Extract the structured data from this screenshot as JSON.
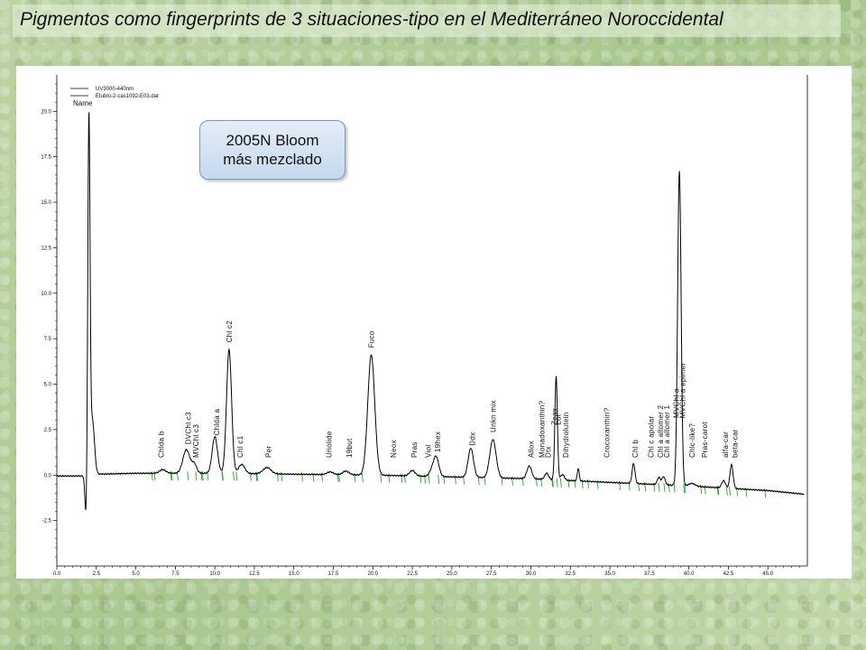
{
  "slide": {
    "title": "Pigmentos como fingerprints de 3 situaciones-tipo en el Mediterráneo Noroccidental"
  },
  "callout": {
    "line1": "2005N Bloom",
    "line2": "más mezclado"
  },
  "colors": {
    "trace": "#000000",
    "baseline_marks": "#22aa22",
    "background": "#b7cf9c"
  },
  "chart_data": {
    "type": "line",
    "title": "",
    "xlabel": "",
    "ylabel": "",
    "xlim": [
      0,
      47.5
    ],
    "ylim": [
      -5,
      22
    ],
    "x_ticks": [
      "0.0",
      "2.5",
      "5.0",
      "7.5",
      "10.0",
      "12.5",
      "15.0",
      "17.5",
      "20.0",
      "22.5",
      "25.0",
      "27.5",
      "30.0",
      "32.5",
      "35.0",
      "37.5",
      "40.0",
      "42.5",
      "45.0"
    ],
    "y_ticks": [
      "-2.5",
      "0.0",
      "2.5",
      "5.0",
      "7.5",
      "10.0",
      "12.5",
      "15.0",
      "17.5",
      "20.0"
    ],
    "legend": {
      "position": "top-left",
      "entries": [
        "UV3000-440nm",
        "Etublo-2-cas1092-E03.dat"
      ],
      "header": "Name"
    },
    "grid": false,
    "series": [
      {
        "name": "UV3000-440nm",
        "baseline": [
          [
            0,
            -0.05
          ],
          [
            1.5,
            -0.05
          ],
          [
            2.6,
            0.05
          ],
          [
            5,
            0.1
          ],
          [
            10,
            0.1
          ],
          [
            15,
            0.05
          ],
          [
            20,
            0.0
          ],
          [
            25,
            -0.1
          ],
          [
            30,
            -0.2
          ],
          [
            35,
            -0.4
          ],
          [
            40,
            -0.6
          ],
          [
            45,
            -0.85
          ],
          [
            47.3,
            -1.05
          ]
        ],
        "peaks": [
          {
            "rt": 1.85,
            "h": -2.3,
            "w": 0.07
          },
          {
            "rt": 2.03,
            "h": 19.4,
            "w": 0.07
          },
          {
            "rt": 2.25,
            "h": 3.0,
            "w": 0.13
          },
          {
            "rt": 6.7,
            "h": 0.2,
            "w": 0.2
          },
          {
            "rt": 8.2,
            "h": 1.3,
            "w": 0.22
          },
          {
            "rt": 8.7,
            "h": 0.5,
            "w": 0.15
          },
          {
            "rt": 10.0,
            "h": 2.0,
            "w": 0.17
          },
          {
            "rt": 10.9,
            "h": 6.8,
            "w": 0.16
          },
          {
            "rt": 11.7,
            "h": 0.5,
            "w": 0.2
          },
          {
            "rt": 13.3,
            "h": 0.35,
            "w": 0.25
          },
          {
            "rt": 17.3,
            "h": 0.15,
            "w": 0.2
          },
          {
            "rt": 18.3,
            "h": 0.2,
            "w": 0.2
          },
          {
            "rt": 19.9,
            "h": 6.6,
            "w": 0.22
          },
          {
            "rt": 22.5,
            "h": 0.3,
            "w": 0.18
          },
          {
            "rt": 23.7,
            "h": 0.25,
            "w": 0.15
          },
          {
            "rt": 24.0,
            "h": 1.1,
            "w": 0.17
          },
          {
            "rt": 26.2,
            "h": 1.6,
            "w": 0.17
          },
          {
            "rt": 27.6,
            "h": 2.1,
            "w": 0.2
          },
          {
            "rt": 29.9,
            "h": 0.7,
            "w": 0.15
          },
          {
            "rt": 31.0,
            "h": 0.35,
            "w": 0.12
          },
          {
            "rt": 31.6,
            "h": 5.7,
            "w": 0.08
          },
          {
            "rt": 32.0,
            "h": 0.3,
            "w": 0.12
          },
          {
            "rt": 33.0,
            "h": 0.7,
            "w": 0.06
          },
          {
            "rt": 36.5,
            "h": 1.1,
            "w": 0.09
          },
          {
            "rt": 38.1,
            "h": 0.4,
            "w": 0.1
          },
          {
            "rt": 38.4,
            "h": 0.45,
            "w": 0.1
          },
          {
            "rt": 39.4,
            "h": 17.3,
            "w": 0.11
          },
          {
            "rt": 40.2,
            "h": 0.15,
            "w": 0.2
          },
          {
            "rt": 42.2,
            "h": 0.4,
            "w": 0.12
          },
          {
            "rt": 42.7,
            "h": 1.3,
            "w": 0.1
          }
        ]
      }
    ],
    "peak_labels": [
      {
        "rt": 6.6,
        "label": "Chlda b"
      },
      {
        "rt": 8.3,
        "label": "DVChl c3"
      },
      {
        "rt": 8.8,
        "label": "MVChl c3"
      },
      {
        "rt": 10.1,
        "label": "Chlda a"
      },
      {
        "rt": 10.9,
        "label": "Chl c2"
      },
      {
        "rt": 11.6,
        "label": "Chl c1"
      },
      {
        "rt": 13.4,
        "label": "Per"
      },
      {
        "rt": 17.2,
        "label": "Uriolide"
      },
      {
        "rt": 18.5,
        "label": "19but"
      },
      {
        "rt": 19.9,
        "label": "Fuco"
      },
      {
        "rt": 21.3,
        "label": "Neox"
      },
      {
        "rt": 22.6,
        "label": "Pras"
      },
      {
        "rt": 23.5,
        "label": "Viol"
      },
      {
        "rt": 24.1,
        "label": "19hex"
      },
      {
        "rt": 26.3,
        "label": "Ddx"
      },
      {
        "rt": 27.6,
        "label": "Unkn mix"
      },
      {
        "rt": 30.0,
        "label": "Allox"
      },
      {
        "rt": 30.7,
        "label": "Monadoxanthin?"
      },
      {
        "rt": 31.1,
        "label": "Dtx"
      },
      {
        "rt": 31.5,
        "label": "Zeax"
      },
      {
        "rt": 31.7,
        "label": "Lut"
      },
      {
        "rt": 32.2,
        "label": "Dihydrolutein"
      },
      {
        "rt": 34.8,
        "label": "Crocoxanthin?"
      },
      {
        "rt": 36.6,
        "label": "Chl b"
      },
      {
        "rt": 37.6,
        "label": "Chl c apolar"
      },
      {
        "rt": 38.2,
        "label": "Chl a allomer 2"
      },
      {
        "rt": 38.6,
        "label": "Chl a allomer 1"
      },
      {
        "rt": 39.2,
        "label": "MVChl a"
      },
      {
        "rt": 39.6,
        "label": "MVChl a epimer"
      },
      {
        "rt": 40.2,
        "label": "Chlc-like?"
      },
      {
        "rt": 41.0,
        "label": "Pras-carot"
      },
      {
        "rt": 42.3,
        "label": "alfa-car"
      },
      {
        "rt": 42.9,
        "label": "beta-car"
      }
    ]
  }
}
